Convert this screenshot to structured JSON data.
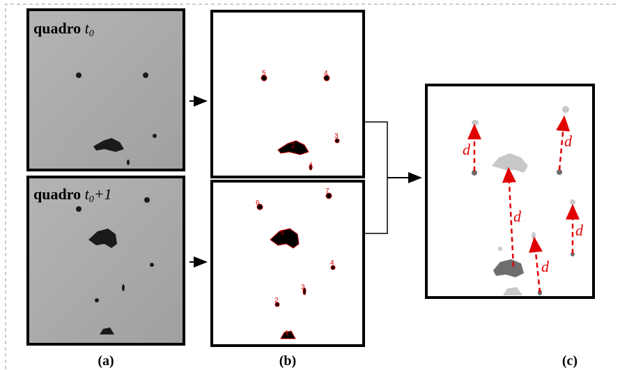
{
  "panels": {
    "a": {
      "caption": "(a)",
      "frames": [
        {
          "word": "quadro",
          "var": "t",
          "sub": "0"
        },
        {
          "word": "quadro",
          "var": "t",
          "sub": "0",
          "suffix": "+1"
        }
      ]
    },
    "b": {
      "caption": "(b)",
      "top_labels": [
        "5",
        "4",
        "3",
        "2",
        "1"
      ],
      "bottom_labels": [
        "6",
        "7",
        "5",
        "4",
        "3",
        "2",
        "1"
      ]
    },
    "c": {
      "caption": "(c)",
      "distance_labels": [
        "d",
        "d",
        "d",
        "d",
        "d"
      ]
    }
  }
}
